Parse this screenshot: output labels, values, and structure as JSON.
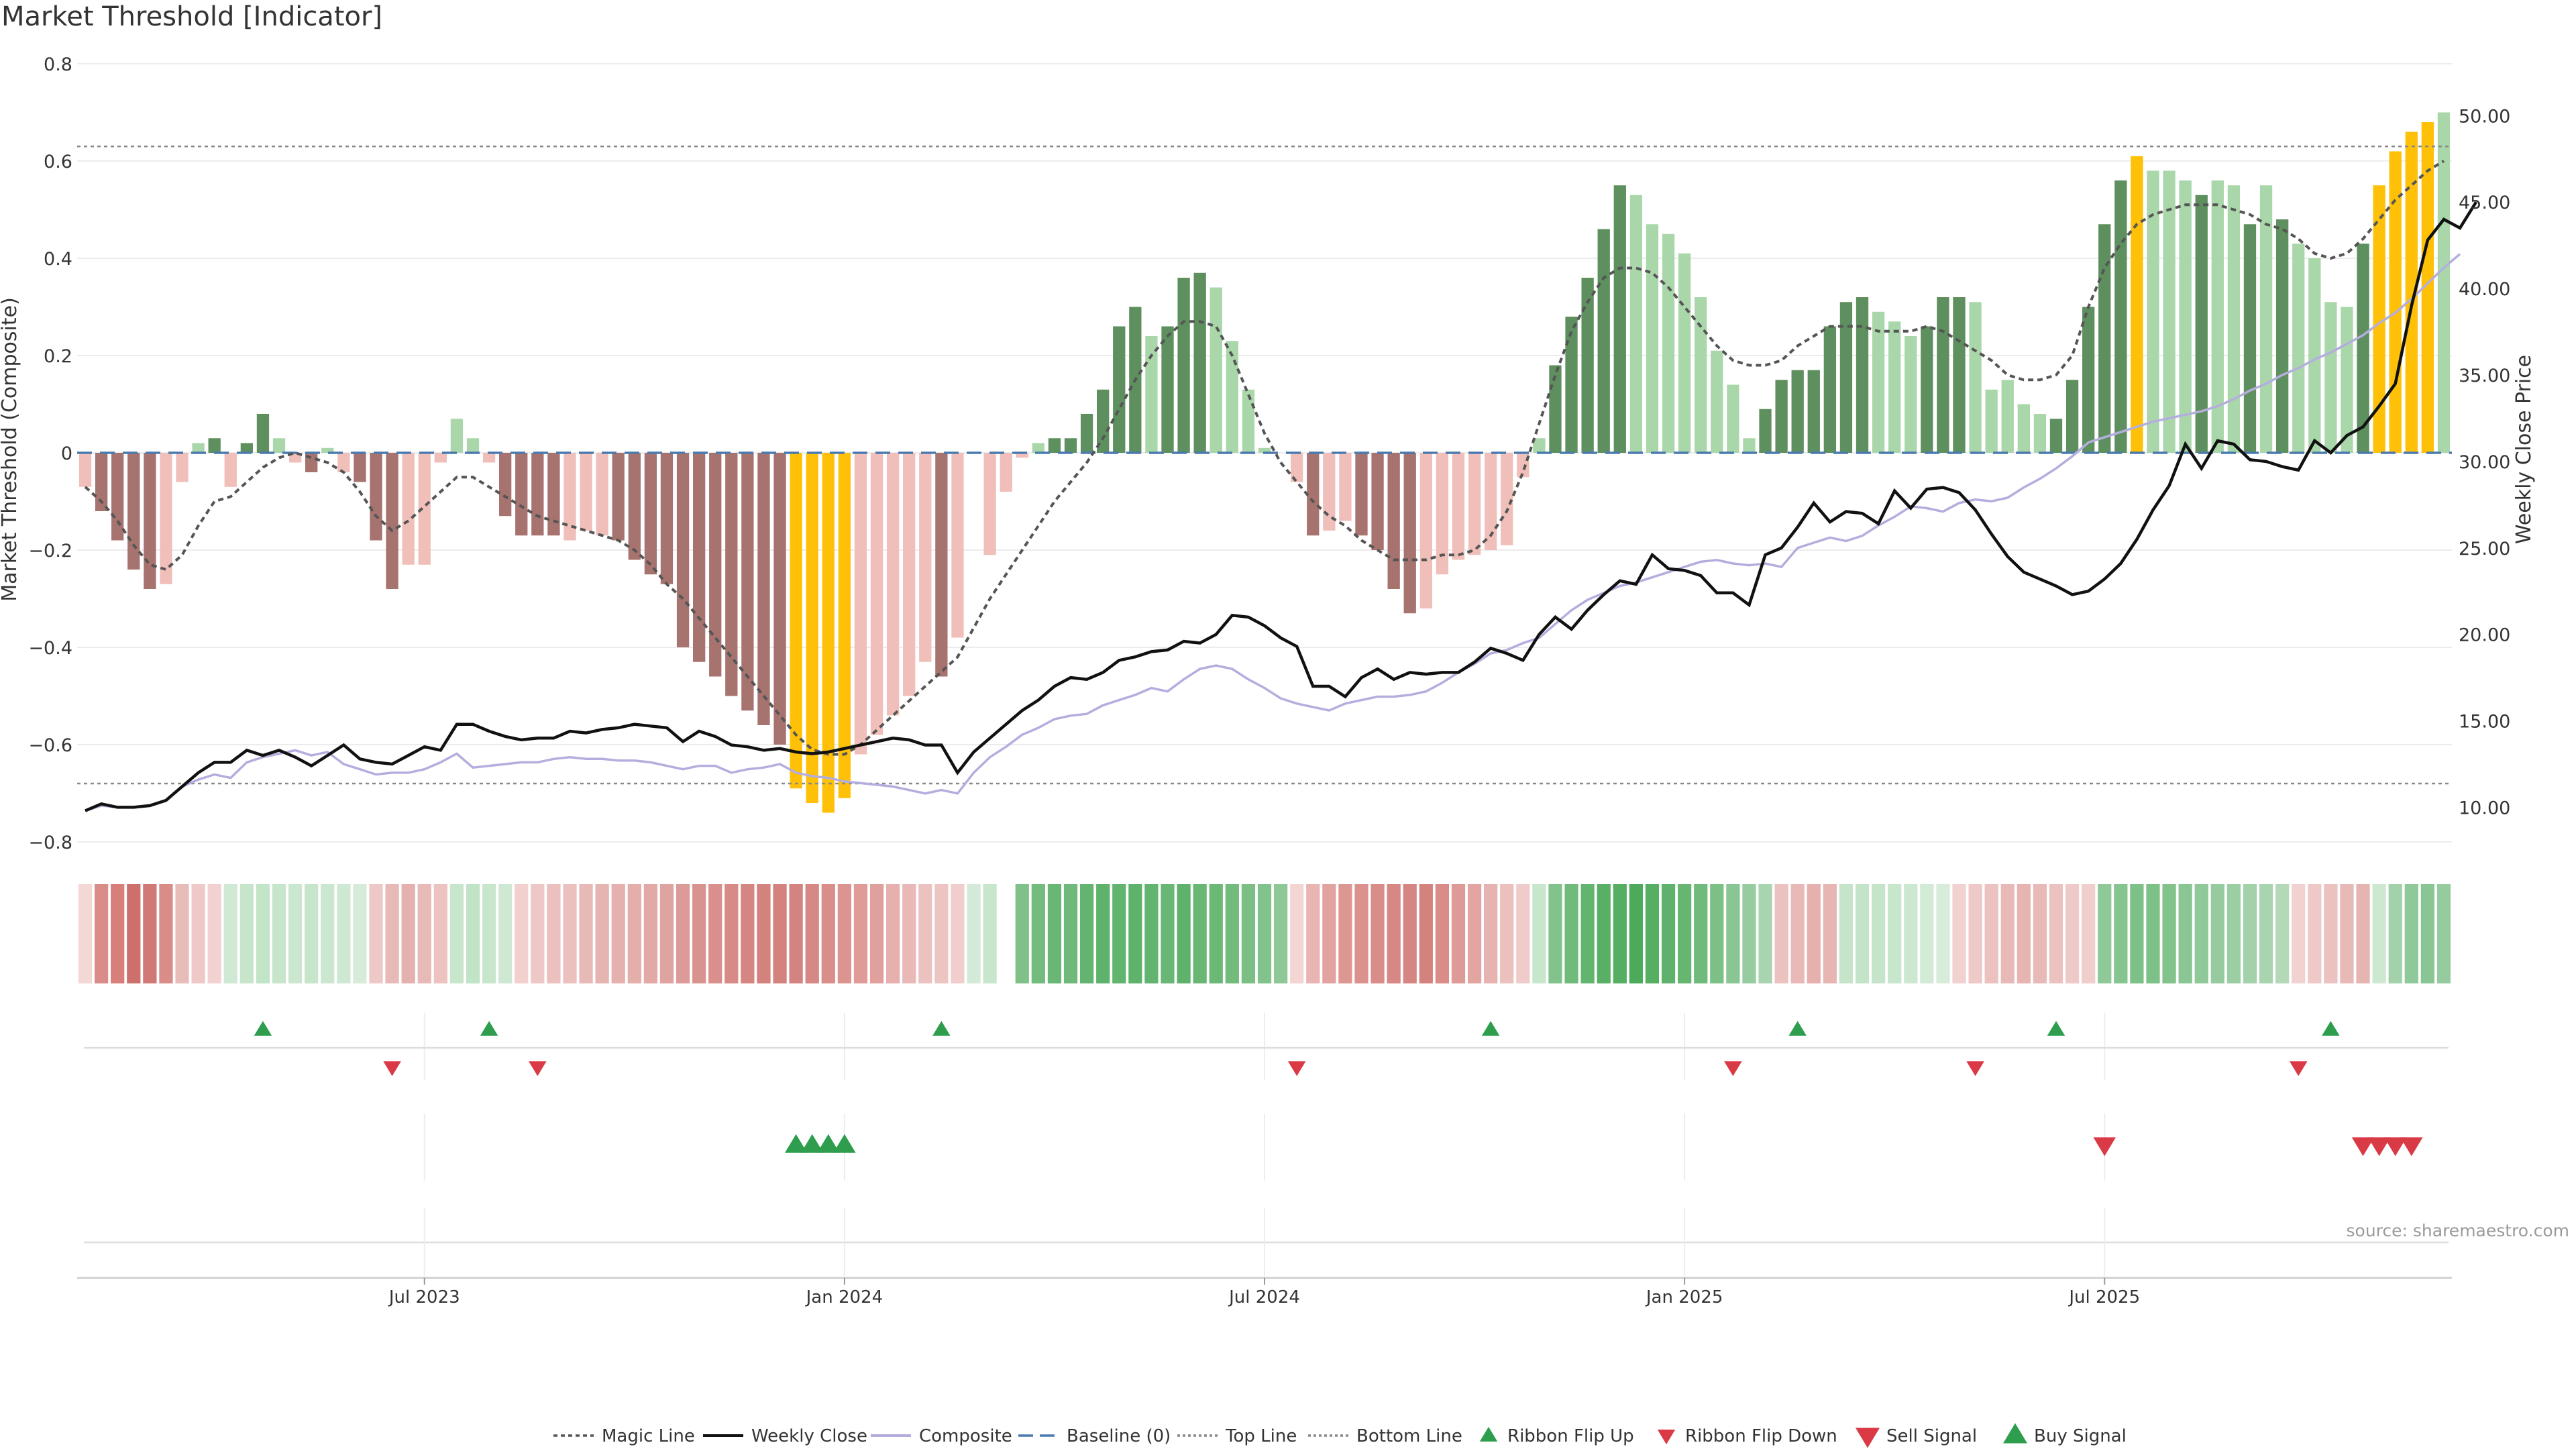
{
  "title": "Market Threshold [Indicator]",
  "source": "source: sharemaestro.com",
  "chart_data": {
    "type": "bar",
    "title": "Market Threshold [Indicator]",
    "ylabel": "Market Threshold (Composite)",
    "y2label": "Weekly Close Price",
    "ylim": [
      -0.8,
      0.8
    ],
    "y2lim": [
      8.0,
      53.0
    ],
    "yticks": [
      0.8,
      0.6,
      0.4,
      0.2,
      0,
      -0.2,
      -0.4,
      -0.6,
      -0.8
    ],
    "ytick_labels": [
      "0.8",
      "0.6",
      "0.4",
      "0.2",
      "0",
      "−0.2",
      "−0.4",
      "−0.6",
      "−0.8"
    ],
    "y2ticks": [
      50,
      45,
      40,
      35,
      30,
      25,
      20,
      15,
      10
    ],
    "y2tick_labels": [
      "50.00",
      "45.00",
      "40.00",
      "35.00",
      "30.00",
      "25.00",
      "20.00",
      "15.00",
      "10.00"
    ],
    "xtick_labels": [
      "Jul 2023",
      "Jan 2024",
      "Jul 2024",
      "Jan 2025",
      "Jul 2025"
    ],
    "top_line": 0.63,
    "bottom_line": -0.68,
    "colors": {
      "strong_pos": "#5e8f5e",
      "weak_pos": "#aad7aa",
      "strong_neg": "#a7736f",
      "weak_neg": "#f0bfb9",
      "extreme": "#ffc107",
      "price": "#111111",
      "composite": "#b4aede",
      "magic": "#555555",
      "baseline": "#4a7ab0",
      "buy": "#2e9e4e",
      "sell": "#d93a45"
    },
    "composite_values": [
      -0.07,
      -0.12,
      -0.18,
      -0.24,
      -0.28,
      -0.27,
      -0.06,
      0.02,
      0.03,
      -0.07,
      0.02,
      0.08,
      0.03,
      -0.02,
      -0.04,
      0.01,
      -0.04,
      -0.06,
      -0.18,
      -0.28,
      -0.23,
      -0.23,
      -0.02,
      0.07,
      0.03,
      -0.02,
      -0.13,
      -0.17,
      -0.17,
      -0.17,
      -0.18,
      -0.16,
      -0.17,
      -0.18,
      -0.22,
      -0.25,
      -0.27,
      -0.4,
      -0.43,
      -0.46,
      -0.5,
      -0.53,
      -0.56,
      -0.6,
      -0.69,
      -0.72,
      -0.74,
      -0.71,
      -0.62,
      -0.58,
      -0.54,
      -0.5,
      -0.43,
      -0.46,
      -0.38,
      0.0,
      -0.21,
      -0.08,
      -0.01,
      0.02,
      0.03,
      0.03,
      0.08,
      0.13,
      0.26,
      0.3,
      0.24,
      0.26,
      0.36,
      0.37,
      0.34,
      0.23,
      0.13,
      0.01,
      0.0,
      -0.06,
      -0.17,
      -0.16,
      -0.14,
      -0.17,
      -0.2,
      -0.28,
      -0.33,
      -0.32,
      -0.25,
      -0.22,
      -0.21,
      -0.2,
      -0.19,
      -0.05,
      0.03,
      0.18,
      0.28,
      0.36,
      0.46,
      0.55,
      0.53,
      0.47,
      0.45,
      0.41,
      0.32,
      0.21,
      0.14,
      0.03,
      0.09,
      0.15,
      0.17,
      0.17,
      0.26,
      0.31,
      0.32,
      0.29,
      0.27,
      0.24,
      0.26,
      0.32,
      0.32,
      0.31,
      0.13,
      0.15,
      0.1,
      0.08,
      0.07,
      0.15,
      0.3,
      0.47,
      0.56,
      0.61,
      0.58,
      0.58,
      0.56,
      0.53,
      0.56,
      0.55,
      0.47,
      0.55,
      0.48,
      0.43,
      0.4,
      0.31,
      0.3,
      0.43,
      0.55,
      0.62,
      0.66,
      0.68,
      0.7
    ],
    "bar_categories": [
      "wn",
      "sn",
      "sn",
      "sn",
      "sn",
      "wn",
      "wn",
      "wp",
      "sp",
      "wn",
      "sp",
      "sp",
      "wp",
      "wn",
      "sn",
      "wp",
      "wn",
      "sn",
      "sn",
      "sn",
      "wn",
      "wn",
      "wn",
      "wp",
      "wp",
      "wn",
      "sn",
      "sn",
      "sn",
      "sn",
      "wn",
      "wn",
      "wn",
      "sn",
      "sn",
      "sn",
      "sn",
      "sn",
      "sn",
      "sn",
      "sn",
      "sn",
      "sn",
      "sn",
      "ex",
      "ex",
      "ex",
      "ex",
      "wn",
      "wn",
      "wn",
      "wn",
      "wn",
      "sn",
      "wn",
      "wn",
      "wn",
      "wn",
      "wn",
      "wp",
      "sp",
      "sp",
      "sp",
      "sp",
      "sp",
      "sp",
      "wp",
      "sp",
      "sp",
      "sp",
      "wp",
      "wp",
      "wp",
      "wp",
      "wp",
      "wn",
      "sn",
      "wn",
      "wn",
      "sn",
      "sn",
      "sn",
      "sn",
      "wn",
      "wn",
      "wn",
      "wn",
      "wn",
      "wn",
      "wn",
      "wp",
      "sp",
      "sp",
      "sp",
      "sp",
      "sp",
      "wp",
      "wp",
      "wp",
      "wp",
      "wp",
      "wp",
      "wp",
      "wp",
      "sp",
      "sp",
      "sp",
      "sp",
      "sp",
      "sp",
      "sp",
      "wp",
      "wp",
      "wp",
      "sp",
      "sp",
      "sp",
      "wp",
      "wp",
      "wp",
      "wp",
      "wp",
      "sp",
      "sp",
      "sp",
      "sp",
      "sp",
      "ex",
      "wp",
      "wp",
      "wp",
      "sp",
      "wp",
      "wp",
      "sp",
      "wp",
      "sp",
      "wp",
      "wp",
      "wp",
      "wp",
      "sp",
      "ex",
      "ex",
      "ex",
      "ex"
    ],
    "price_values": [
      9.8,
      10.1,
      10.0,
      10.0,
      10.1,
      10.4,
      11.2,
      11.6,
      11.9,
      11.7,
      12.6,
      12.9,
      13.1,
      13.3,
      13.0,
      13.2,
      12.5,
      12.2,
      11.9,
      12.0,
      12.0,
      12.2,
      12.6,
      13.1,
      12.3,
      12.4,
      12.5,
      12.6,
      12.6,
      12.8,
      12.9,
      12.8,
      12.8,
      12.7,
      12.7,
      12.6,
      12.4,
      12.2,
      12.4,
      12.4,
      12.0,
      12.2,
      12.3,
      12.5,
      12.0,
      11.8,
      11.7,
      11.5,
      11.4,
      11.3,
      11.2,
      11.0,
      10.8,
      11.0,
      10.8,
      12.0,
      12.9,
      13.5,
      14.2,
      14.6,
      15.1,
      15.3,
      15.4,
      15.9,
      16.2,
      16.5,
      16.9,
      16.7,
      17.4,
      18.0,
      18.2,
      18.0,
      17.4,
      16.9,
      16.3,
      16.0,
      15.8,
      15.6,
      16.0,
      16.2,
      16.4,
      16.4,
      16.5,
      16.7,
      17.2,
      17.8,
      18.3,
      18.9,
      19.1,
      19.5,
      19.8,
      20.6,
      21.4,
      22.0,
      22.4,
      22.8,
      23.0,
      23.3,
      23.6,
      23.9,
      24.2,
      24.3,
      24.1,
      24.0,
      24.1,
      23.9,
      25.0,
      25.3,
      25.6,
      25.4,
      25.7,
      26.3,
      26.8,
      27.4,
      27.3,
      27.1,
      27.6,
      27.8,
      27.7,
      27.9,
      28.5,
      29.0,
      29.6,
      30.3,
      31.1,
      31.4,
      31.7,
      32.0,
      32.3,
      32.5,
      32.7,
      32.9,
      33.2,
      33.6,
      34.1,
      34.5,
      35.0,
      35.4,
      35.9,
      36.3,
      36.8,
      37.3,
      38.0,
      38.6,
      39.4,
      40.3,
      41.2,
      42.0
    ],
    "close_values": [
      9.8,
      10.2,
      10.0,
      10.0,
      10.1,
      10.4,
      11.2,
      12.0,
      12.6,
      12.6,
      13.3,
      13.0,
      13.3,
      12.9,
      12.4,
      13.0,
      13.6,
      12.8,
      12.6,
      12.5,
      13.0,
      13.5,
      13.3,
      14.8,
      14.8,
      14.4,
      14.1,
      13.9,
      14.0,
      14.0,
      14.4,
      14.3,
      14.5,
      14.6,
      14.8,
      14.7,
      14.6,
      13.8,
      14.4,
      14.1,
      13.6,
      13.5,
      13.3,
      13.4,
      13.2,
      13.1,
      13.2,
      13.4,
      13.6,
      13.8,
      14.0,
      13.9,
      13.6,
      13.6,
      12.0,
      13.2,
      14.0,
      14.8,
      15.6,
      16.2,
      17.0,
      17.5,
      17.4,
      17.8,
      18.5,
      18.7,
      19.0,
      19.1,
      19.6,
      19.5,
      20.0,
      21.1,
      21.0,
      20.5,
      19.8,
      19.3,
      17.0,
      17.0,
      16.4,
      17.5,
      18.0,
      17.4,
      17.8,
      17.7,
      17.8,
      17.8,
      18.4,
      19.2,
      18.9,
      18.5,
      20.0,
      21.0,
      20.3,
      21.4,
      22.3,
      23.1,
      22.9,
      24.6,
      23.8,
      23.7,
      23.4,
      22.4,
      22.4,
      21.7,
      24.6,
      25.0,
      26.2,
      27.6,
      26.5,
      27.1,
      27.0,
      26.4,
      28.3,
      27.3,
      28.4,
      28.5,
      28.2,
      27.2,
      25.8,
      24.5,
      23.6,
      23.2,
      22.8,
      22.3,
      22.5,
      23.2,
      24.1,
      25.5,
      27.2,
      28.6,
      31.0,
      29.6,
      31.2,
      31.0,
      30.1,
      30.0,
      29.7,
      29.5,
      31.2,
      30.5,
      31.5,
      32.0,
      33.2,
      34.5,
      39.0,
      42.8,
      44.0,
      43.5,
      45.0
    ],
    "magic_values": [
      -0.07,
      -0.1,
      -0.14,
      -0.19,
      -0.23,
      -0.24,
      -0.21,
      -0.15,
      -0.1,
      -0.09,
      -0.06,
      -0.03,
      -0.01,
      0.0,
      -0.01,
      -0.02,
      -0.04,
      -0.08,
      -0.13,
      -0.16,
      -0.14,
      -0.11,
      -0.08,
      -0.05,
      -0.05,
      -0.07,
      -0.09,
      -0.11,
      -0.13,
      -0.14,
      -0.15,
      -0.16,
      -0.17,
      -0.18,
      -0.2,
      -0.23,
      -0.27,
      -0.3,
      -0.34,
      -0.38,
      -0.42,
      -0.46,
      -0.5,
      -0.54,
      -0.58,
      -0.61,
      -0.62,
      -0.62,
      -0.6,
      -0.57,
      -0.54,
      -0.51,
      -0.48,
      -0.45,
      -0.42,
      -0.36,
      -0.3,
      -0.25,
      -0.2,
      -0.15,
      -0.1,
      -0.06,
      -0.02,
      0.03,
      0.09,
      0.15,
      0.2,
      0.24,
      0.27,
      0.27,
      0.26,
      0.2,
      0.12,
      0.04,
      -0.02,
      -0.06,
      -0.1,
      -0.13,
      -0.15,
      -0.18,
      -0.2,
      -0.22,
      -0.22,
      -0.22,
      -0.21,
      -0.21,
      -0.2,
      -0.17,
      -0.12,
      -0.04,
      0.06,
      0.16,
      0.25,
      0.31,
      0.36,
      0.38,
      0.38,
      0.37,
      0.34,
      0.3,
      0.26,
      0.22,
      0.19,
      0.18,
      0.18,
      0.19,
      0.22,
      0.24,
      0.26,
      0.26,
      0.26,
      0.25,
      0.25,
      0.25,
      0.26,
      0.25,
      0.23,
      0.21,
      0.19,
      0.16,
      0.15,
      0.15,
      0.16,
      0.2,
      0.3,
      0.38,
      0.43,
      0.47,
      0.49,
      0.5,
      0.51,
      0.51,
      0.51,
      0.5,
      0.49,
      0.47,
      0.46,
      0.44,
      0.41,
      0.4,
      0.41,
      0.44,
      0.48,
      0.52,
      0.55,
      0.58,
      0.6
    ],
    "ribbon_colors": [
      "#f3d8d6",
      "#d98c88",
      "#d87f7c",
      "#cd6f6c",
      "#d07976",
      "#d98c88",
      "#e8bcb9",
      "#eec9c7",
      "#f1d2d0",
      "#d0e9d4",
      "#c6e5cb",
      "#c2e4c7",
      "#c6e5cb",
      "#cbe7cf",
      "#c6e5cb",
      "#cbe7cf",
      "#cfe8d3",
      "#d6ebd9",
      "#eec8c6",
      "#e8bab7",
      "#e4b1ae",
      "#e8bab7",
      "#ecc3c1",
      "#c8e6cc",
      "#c1e3c6",
      "#c8e6cc",
      "#cfe8d3",
      "#f1d0ce",
      "#eec8c6",
      "#ebc0be",
      "#ebc0be",
      "#e8bab7",
      "#e6b5b2",
      "#e4b1ae",
      "#e4aeab",
      "#e2a9a6",
      "#dfa3a0",
      "#dc9b98",
      "#d9938f",
      "#d98f8b",
      "#d78a86",
      "#d68682",
      "#d4827e",
      "#d4827e",
      "#d38380",
      "#d68884",
      "#d98e8a",
      "#dc9491",
      "#de9b98",
      "#e0a19e",
      "#e5b0ad",
      "#e8b9b6",
      "#ebc2bf",
      "#ecc5c3",
      "#f0cecc",
      "#d4ead8",
      "#c8e6cc",
      "#ffffff",
      "#7fc188",
      "#73bc7e",
      "#68b774",
      "#6fba7a",
      "#63b470",
      "#5eb26b",
      "#62b46f",
      "#5eb26b",
      "#63b470",
      "#68b774",
      "#5eb26b",
      "#68b774",
      "#6cb877",
      "#72bb7d",
      "#7bbf85",
      "#82c28c",
      "#8ec897",
      "#f3d6d4",
      "#e8b5b2",
      "#e2a3a0",
      "#dd9793",
      "#db918d",
      "#d98c88",
      "#d78784",
      "#d68682",
      "#d4827e",
      "#d98c88",
      "#de9a97",
      "#e2a5a2",
      "#e7b3b0",
      "#ebc0bd",
      "#efcbc9",
      "#c8e6cc",
      "#82c28c",
      "#70bb7b",
      "#62b46f",
      "#59af66",
      "#55ae62",
      "#4caa5a",
      "#55ae62",
      "#5eb26b",
      "#66b672",
      "#70bb7b",
      "#7cc086",
      "#8ac694",
      "#97cca0",
      "#a9d4b0",
      "#ebc2bf",
      "#e8b9b6",
      "#e5b0ad",
      "#e7b6b3",
      "#c5e4ca",
      "#c3e4c8",
      "#c5e4ca",
      "#c8e6cc",
      "#cde8d1",
      "#d3ead6",
      "#d8ecdb",
      "#f1d2d0",
      "#eec9c7",
      "#ebc2bf",
      "#e8bab7",
      "#e6b5b2",
      "#e8bab7",
      "#ebc2bf",
      "#eec9c7",
      "#f0cecc",
      "#90c999",
      "#87c590",
      "#7ec188",
      "#7dc187",
      "#81c38b",
      "#8ac694",
      "#90c999",
      "#95cb9e",
      "#9ccea4",
      "#a2d1aa",
      "#a9d4b0",
      "#b3d9b9",
      "#f1d2d0",
      "#eec9c7",
      "#ebc2bf",
      "#e8bab7",
      "#e6b5b2",
      "#cde8d1",
      "#a2d1aa",
      "#90c999",
      "#8ac694",
      "#95cb9e"
    ],
    "ribbon_flip_up": [
      11,
      25,
      53,
      87,
      106,
      122,
      139
    ],
    "ribbon_flip_down": [
      19,
      28,
      75,
      102,
      117,
      137
    ],
    "buy_signals": [
      44,
      45,
      46,
      47
    ],
    "sell_signals": [
      125,
      141,
      142,
      143,
      144
    ],
    "legend": [
      "Magic Line",
      "Weekly Close",
      "Composite",
      "Baseline (0)",
      "Top Line",
      "Bottom Line",
      "Ribbon Flip Up",
      "Ribbon Flip Down",
      "Sell Signal",
      "Buy Signal"
    ],
    "legend_position": "bottom-center"
  }
}
